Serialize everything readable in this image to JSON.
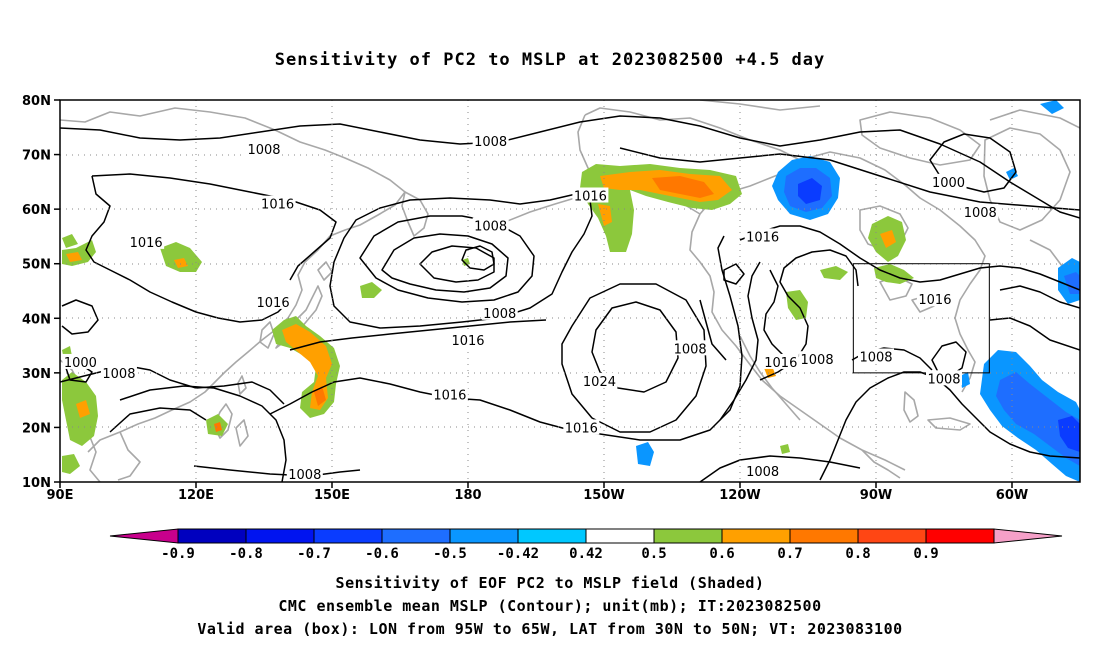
{
  "title": "Sensitivity of PC2 to MSLP at 2023082500 +4.5 day",
  "lat_ticks": [
    "80N",
    "70N",
    "60N",
    "50N",
    "40N",
    "30N",
    "20N",
    "10N"
  ],
  "lon_ticks": [
    "90E",
    "120E",
    "150E",
    "180",
    "150W",
    "120W",
    "90W",
    "60W"
  ],
  "contour_labels": [
    {
      "text": "1008",
      "lon": 135,
      "lat": 71
    },
    {
      "text": "1008",
      "lon": 185,
      "lat": 72.5
    },
    {
      "text": "1000",
      "lon": 286,
      "lat": 65
    },
    {
      "text": "1008",
      "lon": 293,
      "lat": 59.5
    },
    {
      "text": "1016",
      "lon": 138,
      "lat": 61
    },
    {
      "text": "1016",
      "lon": 109,
      "lat": 54
    },
    {
      "text": "1016",
      "lon": 137,
      "lat": 43
    },
    {
      "text": "1008",
      "lon": 185,
      "lat": 57
    },
    {
      "text": "1008",
      "lon": 187,
      "lat": 41
    },
    {
      "text": "1016",
      "lon": 207,
      "lat": 62.5
    },
    {
      "text": "1016",
      "lon": 180,
      "lat": 36
    },
    {
      "text": "1016",
      "lon": 245,
      "lat": 55
    },
    {
      "text": "1016",
      "lon": 283,
      "lat": 43.5
    },
    {
      "text": "1016",
      "lon": 249,
      "lat": 32
    },
    {
      "text": "1024",
      "lon": 209,
      "lat": 28.5
    },
    {
      "text": "1016",
      "lon": 176,
      "lat": 26
    },
    {
      "text": "1016",
      "lon": 205,
      "lat": 20
    },
    {
      "text": "1008",
      "lon": 270,
      "lat": 33
    },
    {
      "text": "1008",
      "lon": 229,
      "lat": 34.5
    },
    {
      "text": "1008",
      "lon": 257,
      "lat": 32.5
    },
    {
      "text": "1008",
      "lon": 285,
      "lat": 29
    },
    {
      "text": "1000",
      "lon": 94.5,
      "lat": 32
    },
    {
      "text": "1008",
      "lon": 103,
      "lat": 30
    },
    {
      "text": "1008",
      "lon": 144,
      "lat": 11.5
    },
    {
      "text": "1008",
      "lon": 245,
      "lat": 12
    }
  ],
  "colorbar": {
    "labels": [
      "-0.9",
      "-0.8",
      "-0.7",
      "-0.6",
      "-0.5",
      "-0.42",
      "0.42",
      "0.5",
      "0.6",
      "0.7",
      "0.8",
      "0.9"
    ],
    "colors": [
      "#c8008c",
      "#0000bf",
      "#0014f0",
      "#0a3cff",
      "#1e6eff",
      "#0a96ff",
      "#00c8ff",
      "#ffffff",
      "#8cc83c",
      "#ffa000",
      "#ff7800",
      "#ff4614",
      "#ff0000",
      "#f5a0c8"
    ]
  },
  "valid_box": {
    "lon_min": 265,
    "lon_max": 295,
    "lat_min": 30,
    "lat_max": 50
  },
  "footer": {
    "line1": "Sensitivity of EOF PC2 to MSLP field (Shaded)",
    "line2": "CMC ensemble mean MSLP (Contour); unit(mb); IT:2023082500",
    "line3": "Valid area (box): LON from 95W to 65W, LAT from 30N to 50N; VT: 2023083100"
  }
}
